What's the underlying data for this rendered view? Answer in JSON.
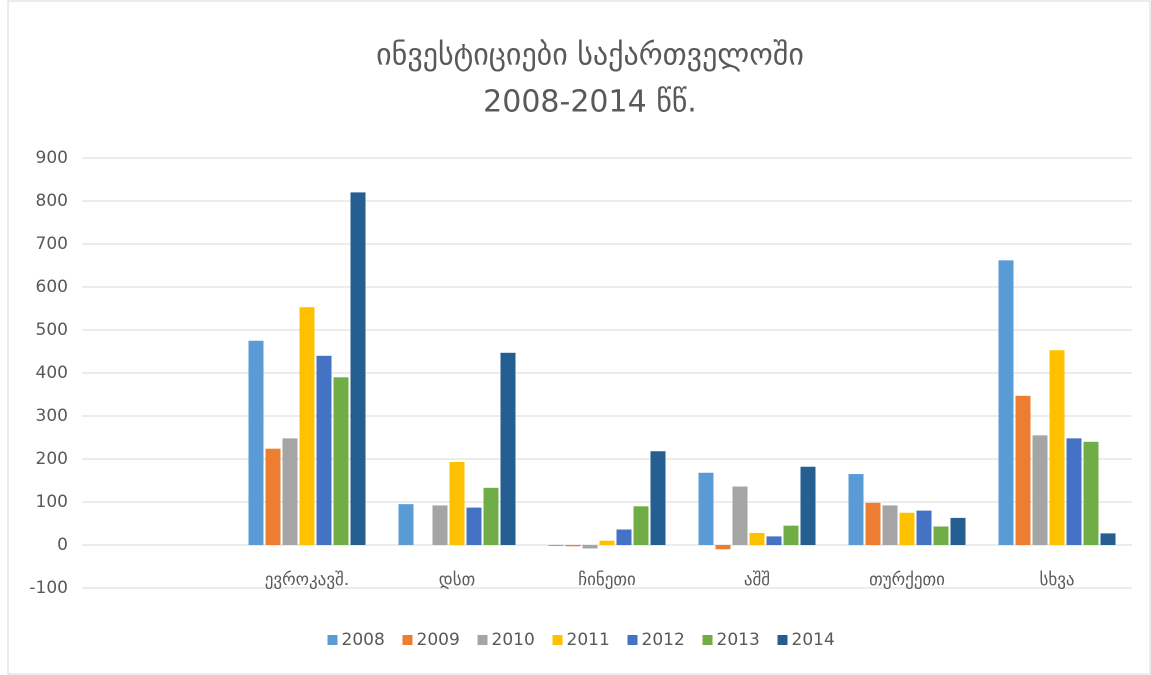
{
  "chart_data": {
    "type": "bar",
    "title": [
      "ინვესტიციები საქართველოში",
      "2008-2014 წწ."
    ],
    "categories": [
      null,
      "ევროკავშ.",
      "დსთ",
      "ჩინეთი",
      "აშშ",
      "თურქეთი",
      "სხვა"
    ],
    "series": [
      {
        "name": "2008",
        "color": "#5b9bd5",
        "values": [
          null,
          475,
          95,
          -2,
          168,
          165,
          662
        ]
      },
      {
        "name": "2009",
        "color": "#ed7d31",
        "values": [
          null,
          224,
          0,
          -3,
          -10,
          98,
          347
        ]
      },
      {
        "name": "2010",
        "color": "#a5a5a5",
        "values": [
          null,
          248,
          92,
          -8,
          136,
          92,
          255
        ]
      },
      {
        "name": "2011",
        "color": "#ffc000",
        "values": [
          null,
          553,
          193,
          10,
          28,
          75,
          453
        ]
      },
      {
        "name": "2012",
        "color": "#4472c4",
        "values": [
          null,
          440,
          87,
          36,
          20,
          80,
          248
        ]
      },
      {
        "name": "2013",
        "color": "#70ad47",
        "values": [
          null,
          390,
          133,
          90,
          45,
          43,
          240
        ]
      },
      {
        "name": "2014",
        "color": "#255e91",
        "values": [
          null,
          820,
          447,
          218,
          182,
          63,
          27
        ]
      }
    ],
    "ylim": [
      -100,
      900
    ],
    "yticks": [
      -100,
      0,
      100,
      200,
      300,
      400,
      500,
      600,
      700,
      800,
      900
    ],
    "grid": true,
    "legend": "bottom"
  }
}
